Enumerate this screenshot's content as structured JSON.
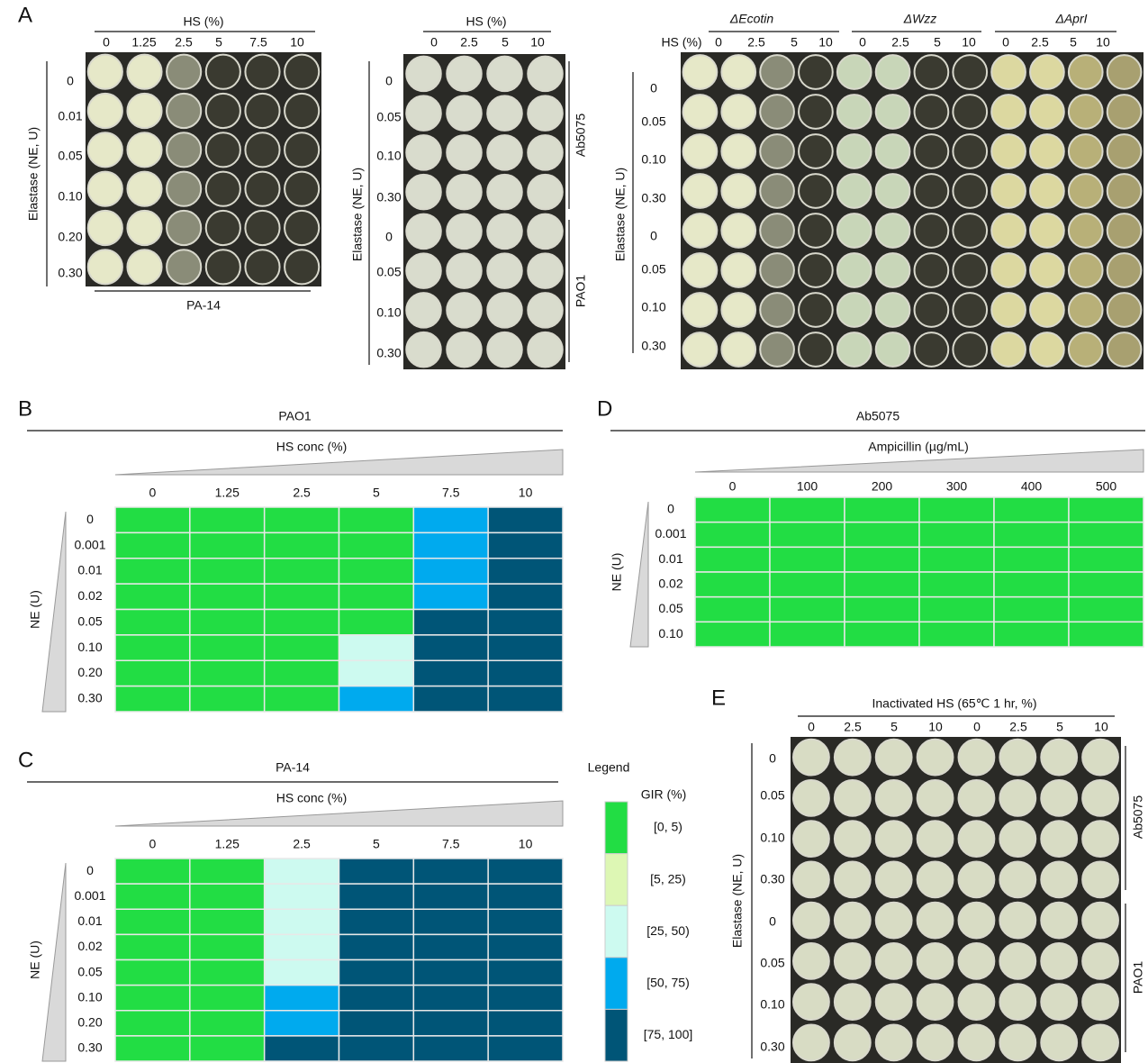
{
  "panel_labels": [
    "A",
    "B",
    "C",
    "D",
    "E"
  ],
  "panel_a": {
    "plate1": {
      "x_title": "HS (%)",
      "x_labels": [
        "0",
        "1.25",
        "2.5",
        "5",
        "7.5",
        "10"
      ],
      "y_title": "Elastase (NE, U)",
      "y_labels": [
        "0",
        "0.01",
        "0.05",
        "0.10",
        "0.20",
        "0.30"
      ],
      "strain": "PA-14"
    },
    "plate2": {
      "x_title": "HS (%)",
      "x_labels": [
        "0",
        "2.5",
        "5",
        "10"
      ],
      "y_title": "Elastase (NE, U)",
      "y_labels": [
        "0",
        "0.05",
        "0.10",
        "0.30",
        "0",
        "0.05",
        "0.10",
        "0.30"
      ],
      "groups": [
        "Ab5075",
        "PAO1"
      ]
    },
    "plate3": {
      "x_title": "HS (%)",
      "groups": [
        "ΔEcotin",
        "ΔWzz",
        "ΔAprI"
      ],
      "x_labels": [
        "0",
        "2.5",
        "5",
        "10",
        "0",
        "2.5",
        "5",
        "10",
        "0",
        "2.5",
        "5",
        "10"
      ],
      "y_title": "Elastase (NE, U)",
      "y_labels": [
        "0",
        "0.05",
        "0.10",
        "0.30",
        "0",
        "0.05",
        "0.10",
        "0.30"
      ]
    }
  },
  "heatmaps": [
    {
      "title": "PAO1",
      "x_title": "HS conc (%)",
      "columns": [
        "0",
        "1.25",
        "2.5",
        "5",
        "7.5",
        "10"
      ],
      "y_title": "NE (U)",
      "rows": [
        "0",
        "0.001",
        "0.01",
        "0.02",
        "0.05",
        "0.10",
        "0.20",
        "0.30"
      ],
      "cells": [
        [
          0,
          0,
          0,
          0,
          3,
          4
        ],
        [
          0,
          0,
          0,
          0,
          3,
          4
        ],
        [
          0,
          0,
          0,
          0,
          3,
          4
        ],
        [
          0,
          0,
          0,
          0,
          3,
          4
        ],
        [
          0,
          0,
          0,
          0,
          4,
          4
        ],
        [
          0,
          0,
          0,
          2,
          4,
          4
        ],
        [
          0,
          0,
          0,
          2,
          4,
          4
        ],
        [
          0,
          0,
          0,
          3,
          4,
          4
        ]
      ]
    },
    {
      "title": "PA-14",
      "x_title": "HS conc (%)",
      "columns": [
        "0",
        "1.25",
        "2.5",
        "5",
        "7.5",
        "10"
      ],
      "y_title": "NE (U)",
      "rows": [
        "0",
        "0.001",
        "0.01",
        "0.02",
        "0.05",
        "0.10",
        "0.20",
        "0.30"
      ],
      "cells": [
        [
          0,
          0,
          2,
          4,
          4,
          4
        ],
        [
          0,
          0,
          2,
          4,
          4,
          4
        ],
        [
          0,
          0,
          2,
          4,
          4,
          4
        ],
        [
          0,
          0,
          2,
          4,
          4,
          4
        ],
        [
          0,
          0,
          2,
          4,
          4,
          4
        ],
        [
          0,
          0,
          3,
          4,
          4,
          4
        ],
        [
          0,
          0,
          3,
          4,
          4,
          4
        ],
        [
          0,
          0,
          4,
          4,
          4,
          4
        ]
      ]
    },
    {
      "title": "Ab5075",
      "x_title": "Ampicillin (µg/mL)",
      "columns": [
        "0",
        "100",
        "200",
        "300",
        "400",
        "500"
      ],
      "y_title": "NE (U)",
      "rows": [
        "0",
        "0.001",
        "0.01",
        "0.02",
        "0.05",
        "0.10"
      ],
      "cells": [
        [
          0,
          0,
          0,
          0,
          0,
          0
        ],
        [
          0,
          0,
          0,
          0,
          0,
          0
        ],
        [
          0,
          0,
          0,
          0,
          0,
          0
        ],
        [
          0,
          0,
          0,
          0,
          0,
          0
        ],
        [
          0,
          0,
          0,
          0,
          0,
          0
        ],
        [
          0,
          0,
          0,
          0,
          0,
          0
        ]
      ]
    }
  ],
  "legend": {
    "title": "Legend",
    "subtitle": "GIR (%)",
    "bins": [
      {
        "label": "[0, 5)",
        "color": "#22dd44"
      },
      {
        "label": "[5, 25)",
        "color": "#ddf7b4"
      },
      {
        "label": "[25, 50)",
        "color": "#cdfaf0"
      },
      {
        "label": "[50, 75)",
        "color": "#00aaee"
      },
      {
        "label": "[75, 100]",
        "color": "#005577"
      }
    ]
  },
  "panel_e": {
    "title": "Inactivated HS (65℃ 1 hr, %)",
    "x_labels": [
      "0",
      "2.5",
      "5",
      "10",
      "0",
      "2.5",
      "5",
      "10"
    ],
    "y_title": "Elastase (NE, U)",
    "y_labels": [
      "0",
      "0.05",
      "0.10",
      "0.30",
      "0",
      "0.05",
      "0.10",
      "0.30"
    ],
    "groups": [
      "Ab5075",
      "PAO1"
    ]
  }
}
